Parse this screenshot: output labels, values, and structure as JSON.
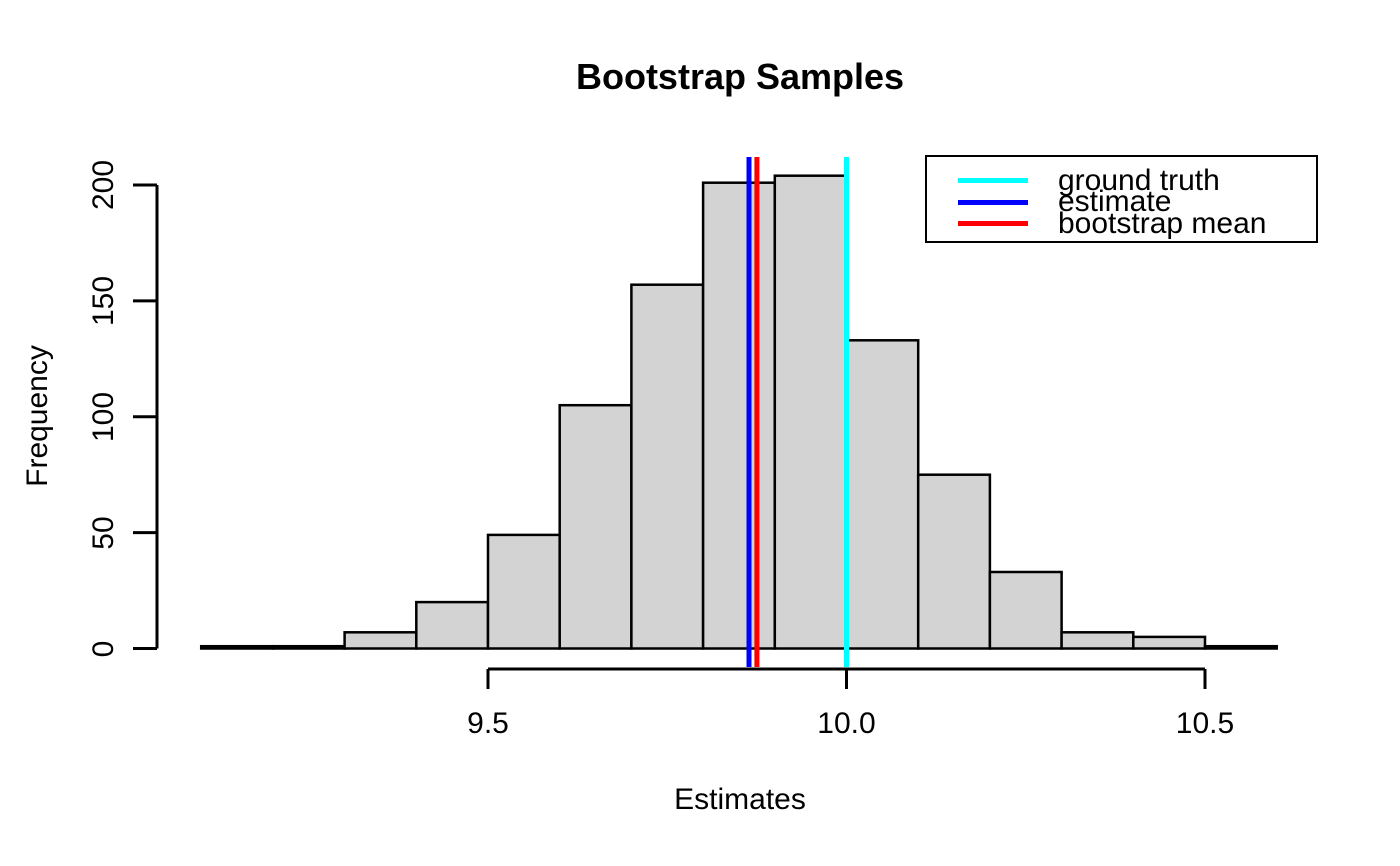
{
  "chart_data": {
    "type": "bar",
    "subtype": "histogram",
    "title": "Bootstrap Samples",
    "xlabel": "Estimates",
    "ylabel": "Frequency",
    "bin_start": 9.1,
    "bin_width": 0.1,
    "counts": [
      1,
      1,
      7,
      20,
      49,
      105,
      157,
      201,
      204,
      133,
      75,
      33,
      7,
      5,
      1
    ],
    "bin_edges": [
      9.1,
      9.2,
      9.3,
      9.4,
      9.5,
      9.6,
      9.7,
      9.8,
      9.9,
      10.0,
      10.1,
      10.2,
      10.3,
      10.4,
      10.5,
      10.6
    ],
    "x_ticks": [
      9.5,
      10.0,
      10.5
    ],
    "x_tick_labels": [
      "9.5",
      "10.0",
      "10.5"
    ],
    "y_ticks": [
      0,
      50,
      100,
      150,
      200
    ],
    "y_tick_labels": [
      "0",
      "50",
      "100",
      "150",
      "200"
    ],
    "xlim": [
      9.04,
      10.66
    ],
    "ylim": [
      0,
      212
    ],
    "grid": false,
    "bar_fill": "#d3d3d3",
    "bar_stroke": "#000000",
    "axis_color": "#000000",
    "vlines": [
      {
        "name": "ground-truth",
        "x": 10.0,
        "color": "#00ffff"
      },
      {
        "name": "estimate",
        "x": 9.864,
        "color": "#0000ff"
      },
      {
        "name": "bootstrap-mean",
        "x": 9.875,
        "color": "#ff0000"
      }
    ],
    "legend": {
      "position": "top-right",
      "entries": [
        {
          "label": "ground truth",
          "color": "#00ffff"
        },
        {
          "label": "estimate",
          "color": "#0000ff"
        },
        {
          "label": "bootstrap mean",
          "color": "#ff0000"
        }
      ]
    }
  }
}
